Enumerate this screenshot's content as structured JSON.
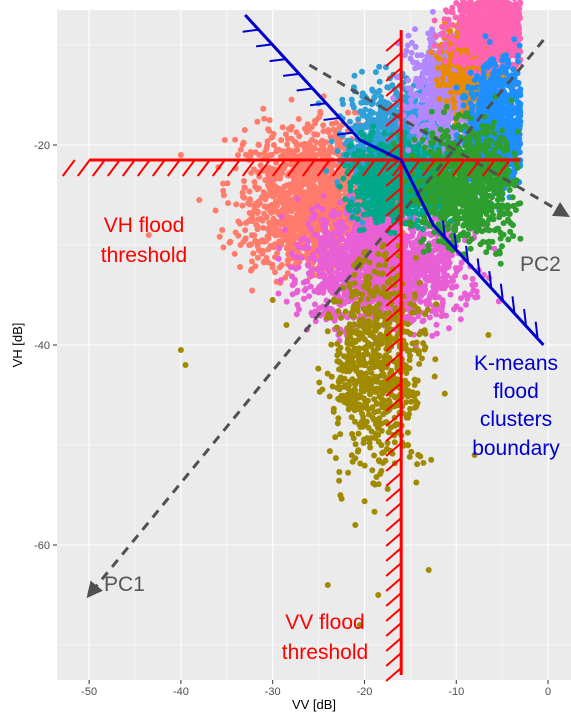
{
  "chart_data": {
    "type": "scatter",
    "title": "",
    "xlabel": "VV [dB]",
    "ylabel": "VH [dB]",
    "xlim": [
      -53.5,
      2.5
    ],
    "ylim": [
      -73.5,
      -6.5
    ],
    "x_ticks": [
      -50,
      -40,
      -30,
      -20,
      -10,
      0
    ],
    "y_ticks": [
      -60,
      -40,
      -20
    ],
    "x_tick_labels": [
      "-50",
      "-40",
      "-30",
      "-20",
      "-10",
      "0"
    ],
    "y_tick_labels": [
      "-60",
      "-40",
      "-20"
    ],
    "grid": true,
    "legend": "none",
    "clusters": [
      {
        "color": "#ff7b6b",
        "center": [
          -25,
          -25.5
        ],
        "spread": [
          4.2,
          3.6
        ],
        "count": 1600,
        "outliers": [
          [
            -43.5,
            -29
          ],
          [
            -40,
            -21
          ],
          [
            -35.5,
            -28.5
          ],
          [
            -33.5,
            -30
          ],
          [
            -31.5,
            -20
          ],
          [
            -38,
            -25.5
          ],
          [
            -29,
            -32
          ],
          [
            -30.5,
            -24
          ]
        ]
      },
      {
        "color": "#e85fd6",
        "center": [
          -18,
          -32
        ],
        "spread": [
          4.3,
          3.0
        ],
        "count": 1600,
        "outliers": [
          [
            -9,
            -35
          ],
          [
            -12,
            -34
          ],
          [
            -20,
            -36
          ],
          [
            -7,
            -33
          ]
        ]
      },
      {
        "color": "#a08a00",
        "center": [
          -18.5,
          -42
        ],
        "spread": [
          2.6,
          5.5
        ],
        "count": 700,
        "outliers": [
          [
            -40,
            -40.5
          ],
          [
            -39.5,
            -42
          ],
          [
            -30,
            -35.5
          ],
          [
            -28.5,
            -38
          ],
          [
            -24,
            -64
          ],
          [
            -20.5,
            -68
          ],
          [
            -18.5,
            -65
          ],
          [
            -13,
            -62.5
          ],
          [
            -8,
            -51
          ],
          [
            -6.5,
            -39
          ],
          [
            -21,
            -58
          ]
        ]
      },
      {
        "color": "#2f9fd8",
        "center": [
          -15.5,
          -20
        ],
        "spread": [
          3.2,
          3.0
        ],
        "count": 1200,
        "outliers": []
      },
      {
        "color": "#00a88a",
        "center": [
          -16,
          -23.5
        ],
        "spread": [
          2.6,
          2.0
        ],
        "count": 1000,
        "outliers": []
      },
      {
        "color": "#b388ff",
        "center": [
          -11,
          -14.5
        ],
        "spread": [
          2.2,
          2.8
        ],
        "count": 800,
        "outliers": []
      },
      {
        "color": "#e88a00",
        "center": [
          -8,
          -12
        ],
        "spread": [
          1.8,
          2.3
        ],
        "count": 500,
        "outliers": []
      },
      {
        "color": "#ff64b4",
        "center": [
          -5.5,
          -8
        ],
        "spread": [
          2.6,
          2.2
        ],
        "count": 900,
        "outliers": []
      },
      {
        "color": "#1e8fff",
        "center": [
          -5,
          -18
        ],
        "spread": [
          2.0,
          3.2
        ],
        "count": 900,
        "outliers": []
      },
      {
        "color": "#2e9e2e",
        "center": [
          -8.5,
          -24
        ],
        "spread": [
          2.8,
          3.0
        ],
        "count": 900,
        "outliers": [
          [
            -6,
            -27
          ],
          [
            -3.5,
            -26.5
          ],
          [
            -12,
            -25
          ]
        ]
      }
    ],
    "thresholds": {
      "vh": -21.5,
      "vv": -16,
      "color": "#ff0000"
    },
    "kmeans_boundary": {
      "color": "#0000cc",
      "points": [
        [
          -33,
          -7
        ],
        [
          -20.5,
          -19.5
        ],
        [
          -16,
          -21.5
        ],
        [
          -12.5,
          -28
        ],
        [
          -0.5,
          -40
        ]
      ]
    },
    "pc_axes": {
      "color": "#505050",
      "pc1": [
        [
          -0.5,
          -9.5
        ],
        [
          -50,
          -65
        ]
      ],
      "pc2": [
        [
          -26,
          -12
        ],
        [
          2,
          -27
        ]
      ]
    },
    "annotations": {
      "vh_threshold": [
        "VH flood",
        "threshold"
      ],
      "vv_threshold": [
        "VV flood",
        "threshold"
      ],
      "kmeans": [
        "K-means",
        "flood",
        "clusters",
        "boundary"
      ],
      "pc1": "PC1",
      "pc2": "PC2"
    }
  }
}
